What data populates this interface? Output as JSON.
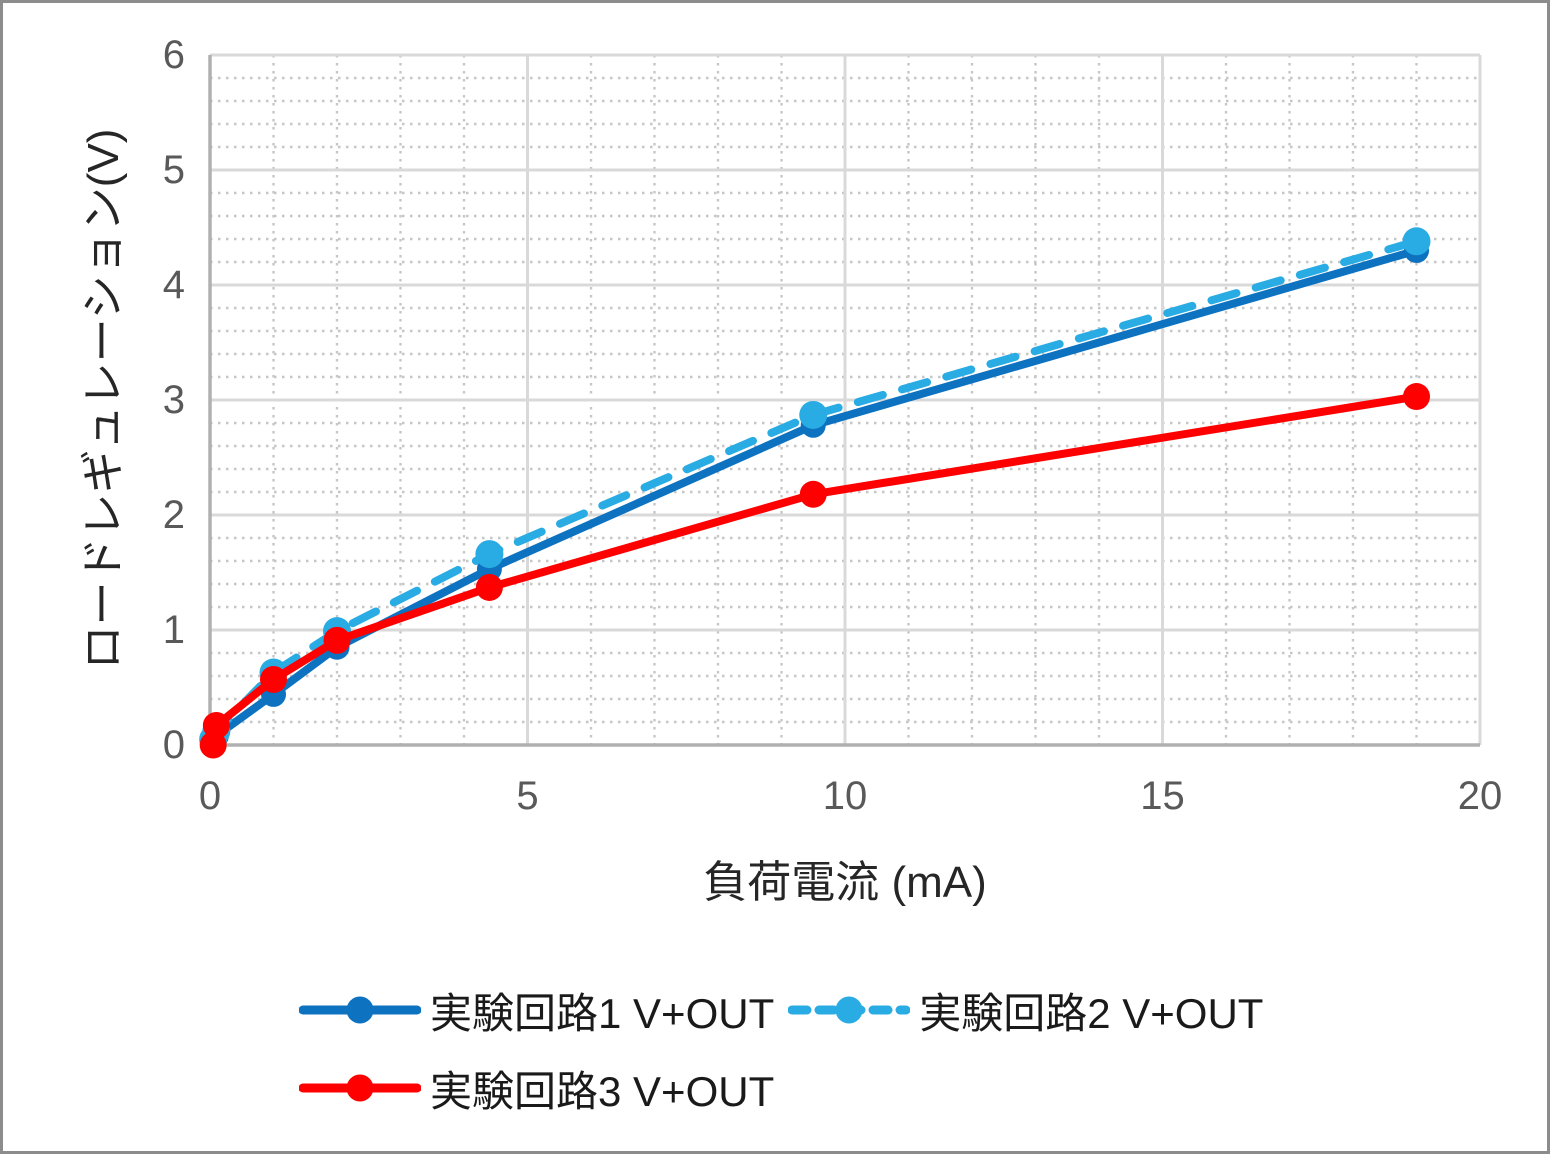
{
  "chart_data": {
    "type": "line",
    "title": "",
    "xlabel": "負荷電流 (mA)",
    "ylabel": "ロードレギュレーション(V)",
    "xlim": [
      0,
      20
    ],
    "ylim": [
      0,
      6
    ],
    "x_major_step": 5,
    "x_minor_step": 1,
    "y_major_step": 1,
    "y_minor_step": 0.2,
    "grid": "major-solid, minor-dotted, both axes",
    "legend_position": "bottom",
    "x_ticks": [
      {
        "label": "0",
        "value": 0
      },
      {
        "label": "5",
        "value": 5
      },
      {
        "label": "10",
        "value": 10
      },
      {
        "label": "15",
        "value": 15
      },
      {
        "label": "20",
        "value": 20
      }
    ],
    "y_ticks": [
      {
        "label": "0",
        "value": 0
      },
      {
        "label": "1",
        "value": 1
      },
      {
        "label": "2",
        "value": 2
      },
      {
        "label": "3",
        "value": 3
      },
      {
        "label": "4",
        "value": 4
      },
      {
        "label": "5",
        "value": 5
      },
      {
        "label": "6",
        "value": 6
      }
    ],
    "series": [
      {
        "name": "実験回路1 V+OUT",
        "color": "#0d72c0",
        "line_style": "solid",
        "marker": "circle",
        "marker_radius": 12.5,
        "points": [
          [
            0.05,
            0.03
          ],
          [
            0.1,
            0.08
          ],
          [
            1,
            0.44
          ],
          [
            2,
            0.85
          ],
          [
            4.4,
            1.53
          ],
          [
            9.5,
            2.78
          ],
          [
            19,
            4.3
          ]
        ]
      },
      {
        "name": "実験回路2 V+OUT",
        "color": "#29abe3",
        "line_style": "dashed",
        "marker": "circle",
        "marker_radius": 14,
        "points": [
          [
            0.05,
            0.05
          ],
          [
            0.1,
            0.12
          ],
          [
            1,
            0.63
          ],
          [
            2,
            0.99
          ],
          [
            4.4,
            1.66
          ],
          [
            9.5,
            2.87
          ],
          [
            19,
            4.38
          ]
        ]
      },
      {
        "name": "実験回路3 V+OUT",
        "color": "#ff0000",
        "line_style": "solid",
        "marker": "circle",
        "marker_radius": 13.5,
        "points": [
          [
            0.05,
            0.0
          ],
          [
            0.1,
            0.17
          ],
          [
            1,
            0.57
          ],
          [
            2,
            0.91
          ],
          [
            4.4,
            1.37
          ],
          [
            9.5,
            2.18
          ],
          [
            19,
            3.03
          ]
        ]
      }
    ],
    "colors": {
      "grid_major": "#d9d9d9",
      "grid_minor": "#c6c6c6",
      "axis_line": "#b0b0b0",
      "tick_text": "#595959",
      "title_text": "#262626"
    }
  }
}
